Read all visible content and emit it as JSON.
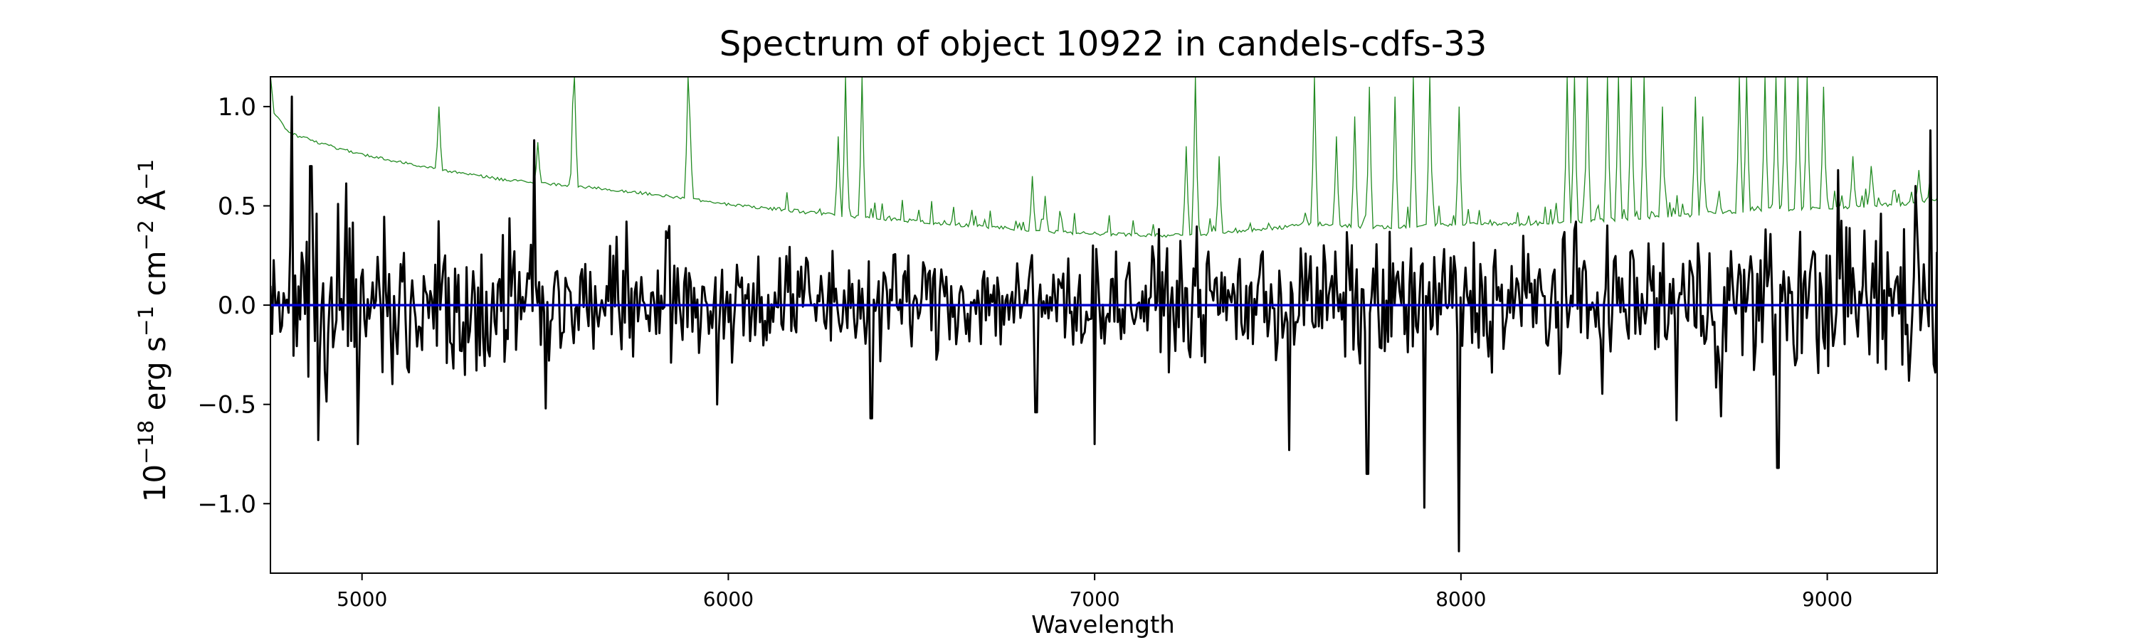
{
  "chart_data": {
    "type": "line",
    "title": "Spectrum of object 10922 in candels-cdfs-33",
    "xlabel": "Wavelength",
    "ylabel_html": "10<tspan baseline-shift=\"super\" font-size=\"70%\">−18</tspan> erg s<tspan baseline-shift=\"super\" font-size=\"70%\">−1</tspan> cm<tspan baseline-shift=\"super\" font-size=\"70%\">−2</tspan> Å<tspan baseline-shift=\"super\" font-size=\"70%\">−1</tspan>",
    "xlim": [
      4750,
      9300
    ],
    "ylim": [
      -1.35,
      1.15
    ],
    "xticks": [
      5000,
      6000,
      7000,
      8000,
      9000
    ],
    "xtick_labels": [
      "5000",
      "6000",
      "7000",
      "8000",
      "9000"
    ],
    "yticks": [
      -1.0,
      -0.5,
      0.0,
      0.5,
      1.0
    ],
    "ytick_labels": [
      "−1.0",
      "−0.5",
      "0.0",
      "0.5",
      "1.0"
    ],
    "grid": false,
    "legend": "none",
    "series": [
      {
        "role": "noise",
        "color": "#228b22",
        "line_width": 1.3
      },
      {
        "role": "flux",
        "color": "#000000",
        "line_width": 3
      },
      {
        "role": "zero-line",
        "color": "#0000cd",
        "line_width": 3.5,
        "x": [
          4750,
          9300
        ],
        "y": [
          0,
          0
        ]
      }
    ],
    "noise_baseline": {
      "x": [
        4750,
        4760,
        4800,
        4900,
        5000,
        5200,
        5400,
        5600,
        5800,
        6000,
        6200,
        6400,
        6600,
        6800,
        7000,
        7200,
        7400,
        7600,
        7800,
        8000,
        8200,
        8400,
        8600,
        8800,
        9000,
        9200,
        9300
      ],
      "y": [
        1.15,
        0.96,
        0.86,
        0.8,
        0.75,
        0.68,
        0.62,
        0.59,
        0.55,
        0.5,
        0.46,
        0.43,
        0.4,
        0.37,
        0.35,
        0.34,
        0.36,
        0.4,
        0.38,
        0.4,
        0.4,
        0.42,
        0.44,
        0.47,
        0.48,
        0.5,
        0.52
      ]
    },
    "noise_peaks": [
      {
        "x": 5210,
        "y": 1.0
      },
      {
        "x": 5480,
        "y": 0.82
      },
      {
        "x": 5577,
        "y": 1.15
      },
      {
        "x": 5580,
        "y": 1.15
      },
      {
        "x": 5890,
        "y": 1.15
      },
      {
        "x": 5895,
        "y": 0.95
      },
      {
        "x": 6300,
        "y": 0.85
      },
      {
        "x": 6320,
        "y": 1.15
      },
      {
        "x": 6365,
        "y": 1.15
      },
      {
        "x": 6830,
        "y": 0.65
      },
      {
        "x": 6865,
        "y": 0.55
      },
      {
        "x": 7250,
        "y": 0.8
      },
      {
        "x": 7275,
        "y": 1.15
      },
      {
        "x": 7340,
        "y": 0.75
      },
      {
        "x": 7600,
        "y": 1.15
      },
      {
        "x": 7660,
        "y": 0.85
      },
      {
        "x": 7710,
        "y": 0.95
      },
      {
        "x": 7750,
        "y": 1.1
      },
      {
        "x": 7820,
        "y": 1.05
      },
      {
        "x": 7870,
        "y": 1.15
      },
      {
        "x": 7915,
        "y": 1.15
      },
      {
        "x": 7995,
        "y": 1.0
      },
      {
        "x": 8290,
        "y": 1.15
      },
      {
        "x": 8310,
        "y": 1.15
      },
      {
        "x": 8345,
        "y": 1.15
      },
      {
        "x": 8400,
        "y": 1.15
      },
      {
        "x": 8430,
        "y": 1.15
      },
      {
        "x": 8465,
        "y": 1.15
      },
      {
        "x": 8500,
        "y": 1.15
      },
      {
        "x": 8550,
        "y": 1.0
      },
      {
        "x": 8640,
        "y": 1.05
      },
      {
        "x": 8660,
        "y": 0.95
      },
      {
        "x": 8760,
        "y": 1.15
      },
      {
        "x": 8780,
        "y": 1.15
      },
      {
        "x": 8830,
        "y": 1.15
      },
      {
        "x": 8860,
        "y": 1.15
      },
      {
        "x": 8885,
        "y": 1.15
      },
      {
        "x": 8920,
        "y": 1.15
      },
      {
        "x": 8945,
        "y": 1.15
      },
      {
        "x": 8990,
        "y": 1.1
      },
      {
        "x": 9070,
        "y": 0.75
      },
      {
        "x": 9120,
        "y": 0.7
      },
      {
        "x": 9250,
        "y": 0.68
      }
    ],
    "flux_envelope": {
      "x": [
        4750,
        5000,
        5500,
        6000,
        6500,
        7000,
        7500,
        8000,
        8500,
        9000,
        9300
      ],
      "amplitude": [
        0.45,
        0.42,
        0.32,
        0.26,
        0.24,
        0.24,
        0.28,
        0.3,
        0.32,
        0.35,
        0.45
      ]
    },
    "flux_features": [
      {
        "x": 4810,
        "y": 1.05
      },
      {
        "x": 4860,
        "y": 0.7
      },
      {
        "x": 4990,
        "y": -0.7
      },
      {
        "x": 4880,
        "y": -0.68
      },
      {
        "x": 5470,
        "y": 0.83
      },
      {
        "x": 5500,
        "y": -0.52
      },
      {
        "x": 5970,
        "y": -0.5
      },
      {
        "x": 6390,
        "y": -0.57
      },
      {
        "x": 6840,
        "y": -0.54
      },
      {
        "x": 7000,
        "y": -0.7
      },
      {
        "x": 7530,
        "y": -0.73
      },
      {
        "x": 7745,
        "y": -0.85
      },
      {
        "x": 7900,
        "y": -1.02
      },
      {
        "x": 7995,
        "y": -1.24
      },
      {
        "x": 8590,
        "y": -0.58
      },
      {
        "x": 8710,
        "y": -0.56
      },
      {
        "x": 8865,
        "y": -0.82
      },
      {
        "x": 9280,
        "y": 0.88
      },
      {
        "x": 9240,
        "y": 0.6
      },
      {
        "x": 9030,
        "y": 0.68
      }
    ]
  }
}
